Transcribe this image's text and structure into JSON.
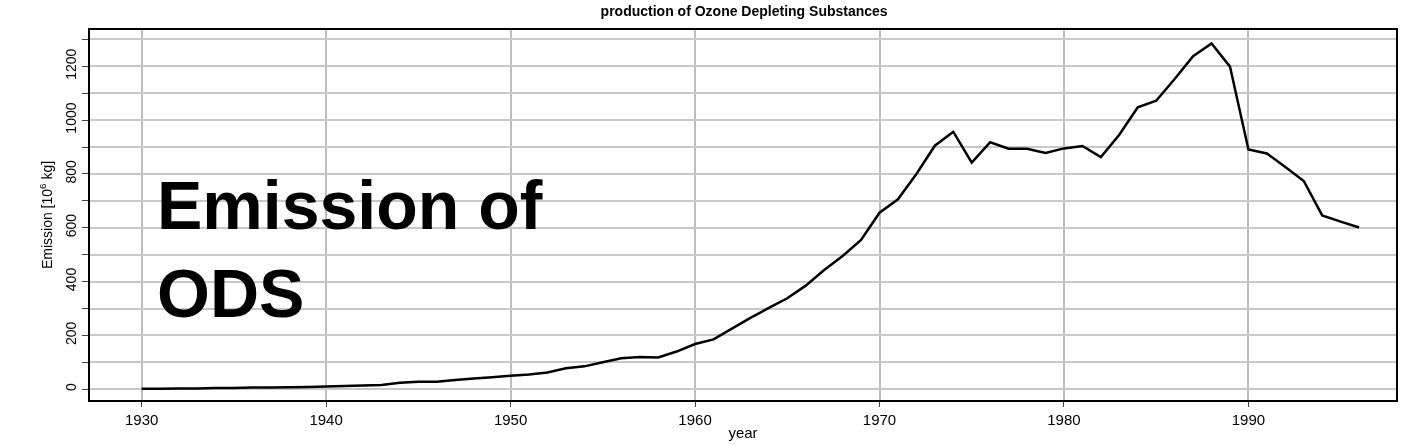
{
  "chart_data": {
    "type": "line",
    "title": "production of Ozone Depleting Substances",
    "xlabel": "year",
    "ylabel": "Emission [10$^{6}$ kg]",
    "annotations": [
      "Emission of\nODS"
    ],
    "x": [
      1930,
      1931,
      1932,
      1933,
      1934,
      1935,
      1936,
      1937,
      1938,
      1939,
      1940,
      1941,
      1942,
      1943,
      1944,
      1945,
      1946,
      1947,
      1948,
      1949,
      1950,
      1951,
      1952,
      1953,
      1954,
      1955,
      1956,
      1957,
      1958,
      1959,
      1960,
      1961,
      1962,
      1963,
      1964,
      1965,
      1966,
      1967,
      1968,
      1969,
      1970,
      1971,
      1972,
      1973,
      1974,
      1975,
      1976,
      1977,
      1978,
      1979,
      1980,
      1981,
      1982,
      1983,
      1984,
      1985,
      1986,
      1987,
      1988,
      1989,
      1990,
      1991,
      1992,
      1993,
      1994,
      1995,
      1996
    ],
    "series": [
      {
        "color": "#000000",
        "values": [
          2,
          2,
          3,
          3,
          5,
          5,
          6,
          6,
          7,
          8,
          10,
          12,
          14,
          16,
          24,
          28,
          28,
          34,
          40,
          45,
          50,
          55,
          62,
          78,
          85,
          100,
          115,
          120,
          118,
          140,
          168,
          185,
          225,
          265,
          302,
          338,
          385,
          443,
          495,
          555,
          656,
          706,
          800,
          905,
          957,
          842,
          918,
          894,
          894,
          878,
          895,
          904,
          863,
          946,
          1048,
          1072,
          1153,
          1238,
          1285,
          1199,
          891,
          876,
          826,
          774,
          646,
          623,
          601
        ]
      }
    ],
    "xlim": [
      1927.2,
      1998
    ],
    "xticks": [
      1930,
      1940,
      1950,
      1960,
      1970,
      1980,
      1990
    ],
    "ylim": [
      -40,
      1335
    ],
    "yticks": [
      0,
      {
        "value": 100,
        "label": null
      },
      200,
      {
        "value": 300,
        "label": null
      },
      400,
      {
        "value": 500,
        "label": null
      },
      600,
      {
        "value": 700,
        "label": null
      },
      800,
      {
        "value": 900,
        "label": null
      },
      1000,
      {
        "value": 1100,
        "label": null
      },
      1200,
      {
        "value": 1300,
        "label": null
      }
    ],
    "grid": true,
    "marker": "none",
    "line_style": "solid"
  }
}
